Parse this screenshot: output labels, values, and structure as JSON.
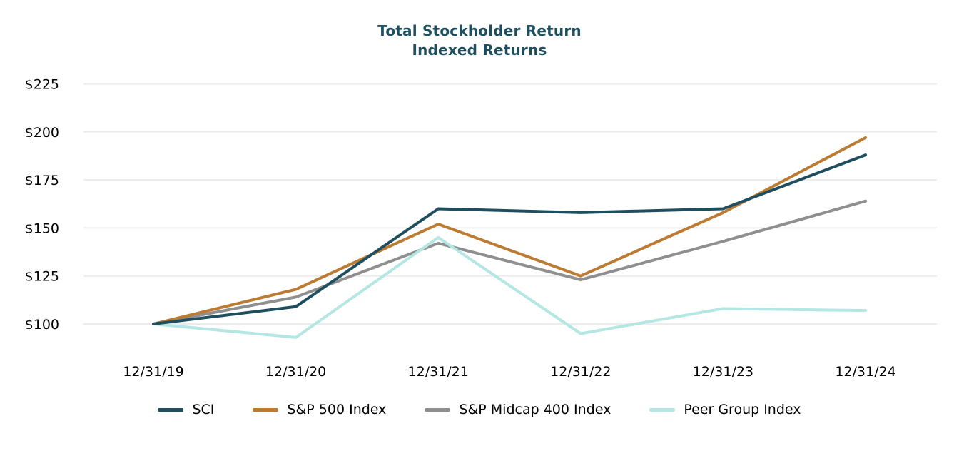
{
  "chart_data": {
    "type": "line",
    "title": "Total Stockholder Return",
    "subtitle": "Indexed Returns",
    "title_color": "#1f4e5f",
    "axis_text_color": "#000000",
    "gridline_color": "#ececec",
    "grid": "horizontal-only",
    "legend_position": "bottom",
    "categories": [
      "12/31/19",
      "12/31/20",
      "12/31/21",
      "12/31/22",
      "12/31/23",
      "12/31/24"
    ],
    "series": [
      {
        "name": "SCI",
        "color": "#1f4e5f",
        "values": [
          100,
          109,
          160,
          158,
          160,
          188
        ]
      },
      {
        "name": "S&P 500 Index",
        "color": "#bc7b33",
        "values": [
          100,
          118,
          152,
          125,
          158,
          197
        ]
      },
      {
        "name": "S&P Midcap 400 Index",
        "color": "#8f8f8f",
        "values": [
          100,
          114,
          142,
          123,
          143,
          164
        ]
      },
      {
        "name": "Peer Group Index",
        "color": "#b4e7e3",
        "values": [
          100,
          93,
          145,
          95,
          108,
          107
        ]
      }
    ],
    "y_ticks": [
      "$225",
      "$200",
      "$175",
      "$150",
      "$125",
      "$100"
    ],
    "y_tick_values": [
      225,
      200,
      175,
      150,
      125,
      100
    ],
    "ylim": [
      86,
      232
    ],
    "x_baseline_value": 100
  }
}
